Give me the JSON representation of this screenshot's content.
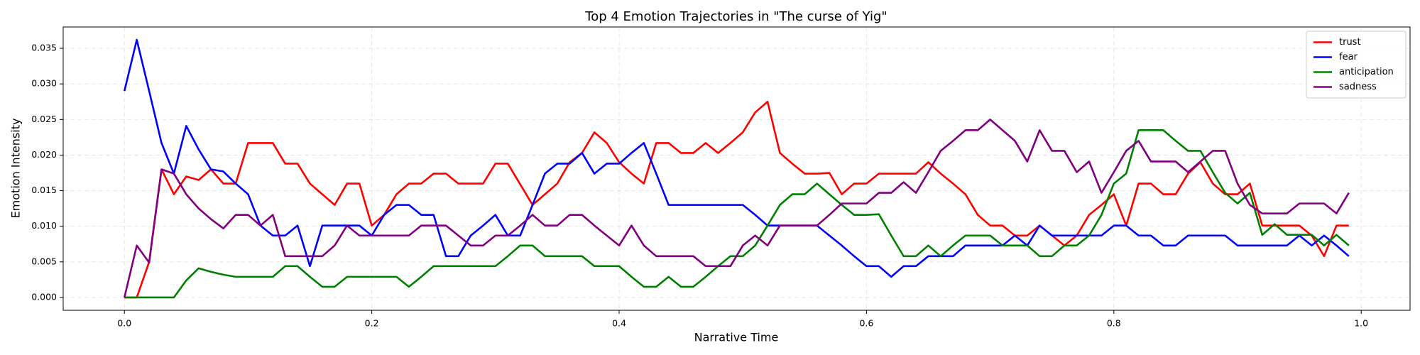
{
  "chart_data": {
    "type": "line",
    "title": "Top 4 Emotion Trajectories in \"The curse of Yig\"",
    "x_label": "Narrative Time",
    "y_label": "Emotion Intensity",
    "x": [
      0,
      0.01,
      0.02,
      0.03,
      0.04,
      0.05,
      0.06,
      0.07,
      0.08,
      0.09,
      0.1,
      0.11,
      0.12,
      0.13,
      0.14,
      0.15,
      0.16,
      0.17,
      0.18,
      0.19,
      0.2,
      0.21,
      0.22,
      0.23,
      0.24,
      0.25,
      0.26,
      0.27,
      0.28,
      0.29,
      0.3,
      0.31,
      0.32,
      0.33,
      0.34,
      0.35,
      0.36,
      0.37,
      0.38,
      0.39,
      0.4,
      0.41,
      0.42,
      0.43,
      0.44,
      0.45,
      0.46,
      0.47,
      0.48,
      0.49,
      0.5,
      0.51,
      0.52,
      0.53,
      0.54,
      0.55,
      0.56,
      0.57,
      0.58,
      0.59,
      0.6,
      0.61,
      0.62,
      0.63,
      0.64,
      0.65,
      0.66,
      0.67,
      0.68,
      0.69,
      0.7,
      0.71,
      0.72,
      0.73,
      0.74,
      0.75,
      0.76,
      0.77,
      0.78,
      0.79,
      0.8,
      0.81,
      0.82,
      0.83,
      0.84,
      0.85,
      0.86,
      0.87,
      0.88,
      0.89,
      0.9,
      0.91,
      0.92,
      0.93,
      0.94,
      0.95,
      0.96,
      0.97,
      0.98,
      0.99
    ],
    "series": [
      {
        "name": "trust",
        "color": "red",
        "values": [
          0,
          0,
          0.005,
          0.018,
          0.0145,
          0.017,
          0.0165,
          0.018,
          0.016,
          0.016,
          0.0217,
          0.0217,
          0.0217,
          0.0188,
          0.0188,
          0.016,
          0.0145,
          0.013,
          0.016,
          0.016,
          0.0101,
          0.0116,
          0.0145,
          0.016,
          0.016,
          0.0174,
          0.0174,
          0.016,
          0.016,
          0.016,
          0.0188,
          0.0188,
          0.0159,
          0.013,
          0.0145,
          0.016,
          0.019,
          0.0203,
          0.0232,
          0.0217,
          0.019,
          0.0174,
          0.016,
          0.0217,
          0.0217,
          0.0203,
          0.0203,
          0.0217,
          0.0203,
          0.0217,
          0.0232,
          0.026,
          0.0275,
          0.0203,
          0.0188,
          0.0174,
          0.0174,
          0.0175,
          0.0145,
          0.016,
          0.016,
          0.0174,
          0.0174,
          0.0174,
          0.0174,
          0.019,
          0.0174,
          0.016,
          0.0145,
          0.0116,
          0.0101,
          0.0101,
          0.0087,
          0.0087,
          0.0101,
          0.0087,
          0.0073,
          0.0087,
          0.0116,
          0.013,
          0.0145,
          0.0101,
          0.016,
          0.016,
          0.0145,
          0.0145,
          0.0174,
          0.019,
          0.016,
          0.0145,
          0.0145,
          0.016,
          0.0101,
          0.0101,
          0.0101,
          0.0101,
          0.0087,
          0.0058,
          0.0101,
          0.0101
        ]
      },
      {
        "name": "fear",
        "color": "blue",
        "values": [
          0.029,
          0.0362,
          0.029,
          0.0217,
          0.0174,
          0.0241,
          0.0208,
          0.018,
          0.0177,
          0.016,
          0.0145,
          0.0101,
          0.0087,
          0.0087,
          0.0101,
          0.0044,
          0.0101,
          0.0101,
          0.0101,
          0.0101,
          0.0087,
          0.0116,
          0.013,
          0.013,
          0.0116,
          0.0116,
          0.0058,
          0.0058,
          0.0087,
          0.0101,
          0.0116,
          0.0087,
          0.0087,
          0.013,
          0.0174,
          0.0188,
          0.0188,
          0.0203,
          0.0174,
          0.0188,
          0.0188,
          0.0203,
          0.0217,
          0.0174,
          0.013,
          0.013,
          0.013,
          0.013,
          0.013,
          0.013,
          0.013,
          0.0116,
          0.0101,
          0.0101,
          0.0101,
          0.0101,
          0.0101,
          0.0087,
          0.0073,
          0.0058,
          0.0044,
          0.0044,
          0.0029,
          0.0044,
          0.0044,
          0.0058,
          0.0058,
          0.0058,
          0.0073,
          0.0073,
          0.0073,
          0.0073,
          0.0087,
          0.0073,
          0.0101,
          0.0087,
          0.0087,
          0.0087,
          0.0087,
          0.0087,
          0.0101,
          0.0101,
          0.0087,
          0.0087,
          0.0073,
          0.0073,
          0.0087,
          0.0087,
          0.0087,
          0.0087,
          0.0073,
          0.0073,
          0.0073,
          0.0073,
          0.0073,
          0.0087,
          0.0073,
          0.0087,
          0.0073,
          0.0058
        ]
      },
      {
        "name": "anticipation",
        "color": "green",
        "values": [
          0,
          0,
          0,
          0,
          0,
          0.0024,
          0.0041,
          0.0036,
          0.0032,
          0.0029,
          0.0029,
          0.0029,
          0.0029,
          0.0044,
          0.0044,
          0.0029,
          0.0015,
          0.0015,
          0.0029,
          0.0029,
          0.0029,
          0.0029,
          0.0029,
          0.0015,
          0.0029,
          0.0044,
          0.0044,
          0.0044,
          0.0044,
          0.0044,
          0.0044,
          0.0058,
          0.0073,
          0.0073,
          0.0058,
          0.0058,
          0.0058,
          0.0058,
          0.0044,
          0.0044,
          0.0044,
          0.0029,
          0.0015,
          0.0015,
          0.0029,
          0.0015,
          0.0015,
          0.0029,
          0.0044,
          0.0058,
          0.0058,
          0.0073,
          0.0101,
          0.013,
          0.0145,
          0.0145,
          0.016,
          0.0145,
          0.013,
          0.0116,
          0.0116,
          0.0117,
          0.0087,
          0.0058,
          0.0058,
          0.0073,
          0.0058,
          0.0073,
          0.0087,
          0.0087,
          0.0087,
          0.0073,
          0.0073,
          0.0073,
          0.0058,
          0.0058,
          0.0073,
          0.0073,
          0.0087,
          0.0116,
          0.016,
          0.0174,
          0.0235,
          0.0235,
          0.0235,
          0.022,
          0.0206,
          0.0206,
          0.0176,
          0.0147,
          0.0132,
          0.0147,
          0.0088,
          0.0103,
          0.0088,
          0.0088,
          0.0088,
          0.0073,
          0.0088,
          0.0073
        ]
      },
      {
        "name": "sadness",
        "color": "purple",
        "values": [
          0,
          0.0073,
          0.0049,
          0.018,
          0.0174,
          0.0145,
          0.0125,
          0.011,
          0.0097,
          0.0116,
          0.0116,
          0.0101,
          0.0116,
          0.0058,
          0.0058,
          0.0058,
          0.0058,
          0.0073,
          0.0101,
          0.0087,
          0.0087,
          0.0087,
          0.0087,
          0.0087,
          0.0101,
          0.0101,
          0.0101,
          0.0087,
          0.0073,
          0.0073,
          0.0087,
          0.0087,
          0.0101,
          0.0116,
          0.0101,
          0.0101,
          0.0116,
          0.0116,
          0.0101,
          0.0087,
          0.0073,
          0.0101,
          0.0073,
          0.0058,
          0.0058,
          0.0058,
          0.0058,
          0.0044,
          0.0044,
          0.0044,
          0.0073,
          0.0087,
          0.0073,
          0.0101,
          0.0101,
          0.0101,
          0.0101,
          0.0116,
          0.0132,
          0.0132,
          0.0132,
          0.0147,
          0.0147,
          0.0162,
          0.0147,
          0.0176,
          0.0206,
          0.022,
          0.0235,
          0.0235,
          0.025,
          0.0235,
          0.022,
          0.0191,
          0.0235,
          0.0206,
          0.0206,
          0.0176,
          0.0191,
          0.0147,
          0.0176,
          0.0206,
          0.022,
          0.0191,
          0.0191,
          0.0191,
          0.0176,
          0.0191,
          0.0206,
          0.0206,
          0.016,
          0.013,
          0.0118,
          0.0118,
          0.0118,
          0.0132,
          0.0132,
          0.0132,
          0.0118,
          0.0147
        ]
      }
    ],
    "xlim": [
      -0.0495,
      1.0395
    ],
    "ylim": [
      -0.0018,
      0.038
    ],
    "xticks": [
      {
        "value": 0,
        "label": "0.0"
      },
      0.2,
      0.4,
      0.6,
      0.8,
      {
        "value": 1,
        "label": "1.0"
      }
    ],
    "yticks": [
      {
        "value": 0,
        "label": "0.000"
      },
      {
        "value": 0.005,
        "label": "0.005"
      },
      {
        "value": 0.01,
        "label": "0.010"
      },
      {
        "value": 0.015,
        "label": "0.015"
      },
      {
        "value": 0.02,
        "label": "0.020"
      },
      {
        "value": 0.025,
        "label": "0.025"
      },
      {
        "value": 0.03,
        "label": "0.030"
      },
      {
        "value": 0.035,
        "label": "0.035"
      }
    ],
    "grid": true,
    "legend": "upper right"
  }
}
